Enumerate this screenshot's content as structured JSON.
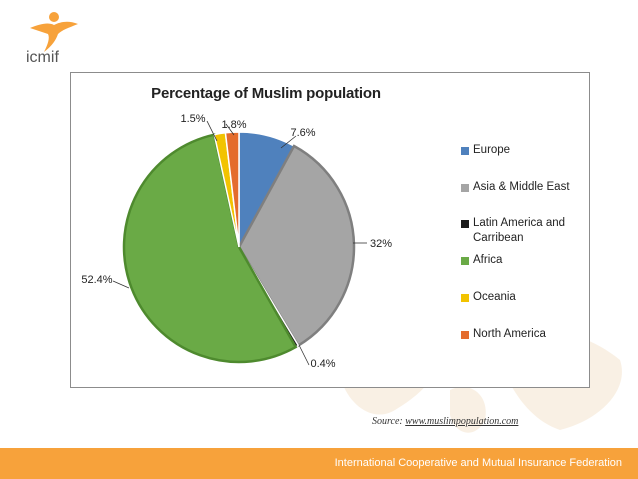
{
  "logo": {
    "text": "icmif"
  },
  "footer": {
    "text": "International Cooperative and Mutual Insurance Federation"
  },
  "source": {
    "prefix": "Source: ",
    "url_text": "www.muslimpopulation.com"
  },
  "colors": {
    "footer_bar": "#f7a23b",
    "logo_orange": "#f7a23b",
    "logo_text": "#555555"
  },
  "chart_data": {
    "type": "pie",
    "title": "Percentage of Muslim population",
    "legend_position": "right",
    "slices": [
      {
        "name": "Europe",
        "value": 7.6,
        "label": "7.6%",
        "color": "#4f81bd"
      },
      {
        "name": "Asia & Middle East",
        "value": 32,
        "label": "32%",
        "color": "#a5a5a5"
      },
      {
        "name": "Latin America and Carribean",
        "value": 0.4,
        "label": "0.4%",
        "color": "#1a1a1a"
      },
      {
        "name": "Africa",
        "value": 52.4,
        "label": "52.4%",
        "color": "#6aaa46"
      },
      {
        "name": "Oceania",
        "value": 1.5,
        "label": "1.5%",
        "color": "#f2c300"
      },
      {
        "name": "North America",
        "value": 1.8,
        "label": "1.8%",
        "color": "#e46c2d"
      }
    ]
  }
}
